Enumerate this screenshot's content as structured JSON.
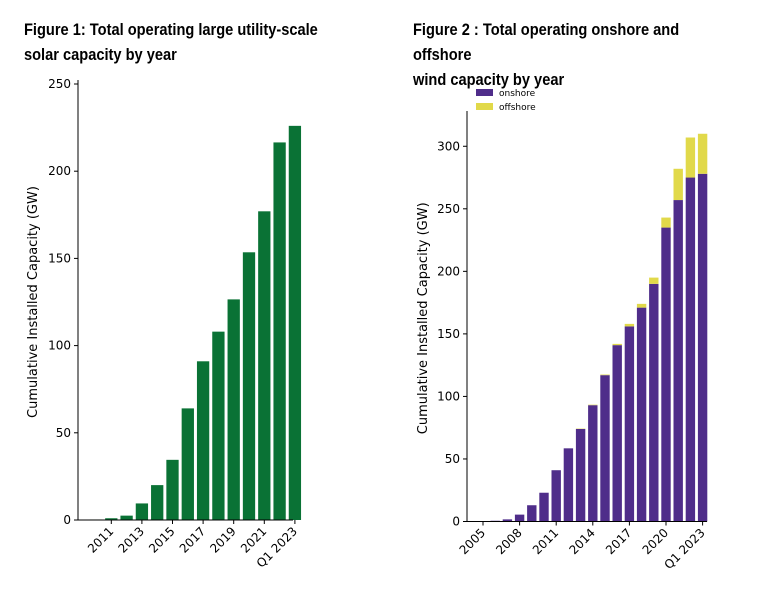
{
  "chart_data": [
    {
      "type": "bar",
      "title": "Figure 1: Total operating large utility-scale solar capacity by year",
      "title_lines": [
        "Figure 1: Total operating large utility-scale",
        "solar capacity by year"
      ],
      "ylabel": "Cumulative Installed Capacity (GW)",
      "ylim": [
        0,
        250
      ],
      "yticks": [
        0,
        50,
        100,
        150,
        200,
        250
      ],
      "categories": [
        "2010",
        "2011",
        "2012",
        "2013",
        "2014",
        "2015",
        "2016",
        "2017",
        "2018",
        "2019",
        "2020",
        "2021",
        "2022",
        "Q1 2023"
      ],
      "values": [
        0.3,
        1,
        2.5,
        9.5,
        20,
        34.5,
        64,
        91,
        108,
        126.5,
        153.5,
        177,
        216.5,
        226
      ],
      "xtick_labels": [
        "2011",
        "2013",
        "2015",
        "2017",
        "2019",
        "2021",
        "Q1 2023"
      ],
      "bar_color": "#0a7235",
      "legend": "none"
    },
    {
      "type": "bar",
      "stacked": true,
      "title": "Figure 2 : Total operating onshore and offshore wind capacity by year",
      "title_lines": [
        "Figure 2 : Total operating onshore and offshore",
        "wind capacity by year"
      ],
      "ylabel": "Cumulative Installed Capacity (GW)",
      "ylim": [
        0,
        325
      ],
      "yticks": [
        0,
        50,
        100,
        150,
        200,
        250,
        300
      ],
      "categories": [
        "2005",
        "2006",
        "2007",
        "2008",
        "2009",
        "2010",
        "2011",
        "2012",
        "2013",
        "2014",
        "2015",
        "2016",
        "2017",
        "2018",
        "2019",
        "2020",
        "2021",
        "2022",
        "Q1 2023"
      ],
      "series": [
        {
          "name": "onshore",
          "color": "#4f2d8a",
          "values": [
            0.3,
            0.6,
            1.7,
            5.5,
            13,
            23,
            41,
            58.5,
            74,
            93,
            117,
            141,
            156,
            171,
            190,
            235,
            257,
            275,
            278
          ]
        },
        {
          "name": "offshore",
          "color": "#e1d94a",
          "values": [
            0,
            0,
            0,
            0,
            0,
            0,
            0,
            0,
            0.3,
            0.4,
            0.5,
            1,
            2,
            3,
            5,
            8,
            25,
            32,
            32
          ]
        }
      ],
      "xtick_labels": [
        "2005",
        "2008",
        "2011",
        "2014",
        "2017",
        "2020",
        "Q1 2023"
      ],
      "legend": "top-left"
    }
  ]
}
